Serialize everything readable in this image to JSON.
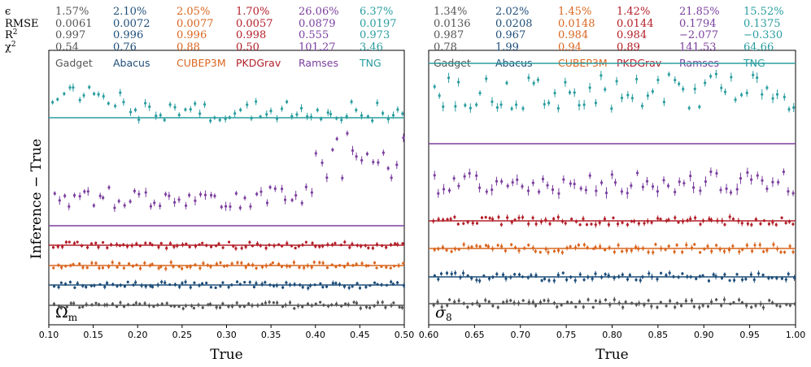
{
  "chart_data": [
    {
      "type": "scatter",
      "panel_label": "Ω",
      "panel_label_sub": "m",
      "xlabel": "True",
      "ylabel": "Inference − True",
      "xlim": [
        0.1,
        0.5
      ],
      "xticks": [
        "0.10",
        "0.15",
        "0.20",
        "0.25",
        "0.30",
        "0.35",
        "0.40",
        "0.45",
        "0.50"
      ],
      "xtick_values": [
        0.1,
        0.15,
        0.2,
        0.25,
        0.3,
        0.35,
        0.4,
        0.45,
        0.5
      ],
      "metric_labels": [
        "ϵ",
        "RMSE",
        "R",
        "χ"
      ],
      "series": [
        {
          "name": "Gadget",
          "color": "#555555",
          "epsilon": "1.57%",
          "rmse": "0.0061",
          "r2": "0.997",
          "chi2": "0.54"
        },
        {
          "name": "Abacus",
          "color": "#1f4e79",
          "epsilon": "2.10%",
          "rmse": "0.0072",
          "r2": "0.996",
          "chi2": "0.76"
        },
        {
          "name": "CUBEP3M",
          "color": "#d9661f",
          "epsilon": "2.05%",
          "rmse": "0.0077",
          "r2": "0.996",
          "chi2": "0.88"
        },
        {
          "name": "PKDGrav",
          "color": "#b3202a",
          "epsilon": "1.70%",
          "rmse": "0.0057",
          "r2": "0.998",
          "chi2": "0.50"
        },
        {
          "name": "Ramses",
          "color": "#7b3f9e",
          "epsilon": "26.06%",
          "rmse": "0.0879",
          "r2": "0.555",
          "chi2": "101.27"
        },
        {
          "name": "TNG",
          "color": "#2a9d9f",
          "epsilon": "6.37%",
          "rmse": "0.0197",
          "r2": "0.973",
          "chi2": "3.46"
        }
      ]
    },
    {
      "type": "scatter",
      "panel_label": "σ",
      "panel_label_sub": "8",
      "xlabel": "True",
      "ylabel": "",
      "xlim": [
        0.6,
        1.0
      ],
      "xticks": [
        "0.60",
        "0.65",
        "0.70",
        "0.75",
        "0.80",
        "0.85",
        "0.90",
        "0.95",
        "1.00"
      ],
      "xtick_values": [
        0.6,
        0.65,
        0.7,
        0.75,
        0.8,
        0.85,
        0.9,
        0.95,
        1.0
      ],
      "series": [
        {
          "name": "Gadget",
          "color": "#555555",
          "epsilon": "1.34%",
          "rmse": "0.0136",
          "r2": "0.987",
          "chi2": "0.78"
        },
        {
          "name": "Abacus",
          "color": "#1f4e79",
          "epsilon": "2.02%",
          "rmse": "0.0208",
          "r2": "0.967",
          "chi2": "1.99"
        },
        {
          "name": "CUBEP3M",
          "color": "#d9661f",
          "epsilon": "1.45%",
          "rmse": "0.0148",
          "r2": "0.984",
          "chi2": "0.94"
        },
        {
          "name": "PKDGrav",
          "color": "#b3202a",
          "epsilon": "1.42%",
          "rmse": "0.0144",
          "r2": "0.984",
          "chi2": "0.89"
        },
        {
          "name": "Ramses",
          "color": "#7b3f9e",
          "epsilon": "21.85%",
          "rmse": "0.1794",
          "r2": "−2.077",
          "chi2": "141.53"
        },
        {
          "name": "TNG",
          "color": "#2a9d9f",
          "epsilon": "15.52%",
          "rmse": "0.1375",
          "r2": "−0.330",
          "chi2": "64.66"
        }
      ]
    }
  ]
}
